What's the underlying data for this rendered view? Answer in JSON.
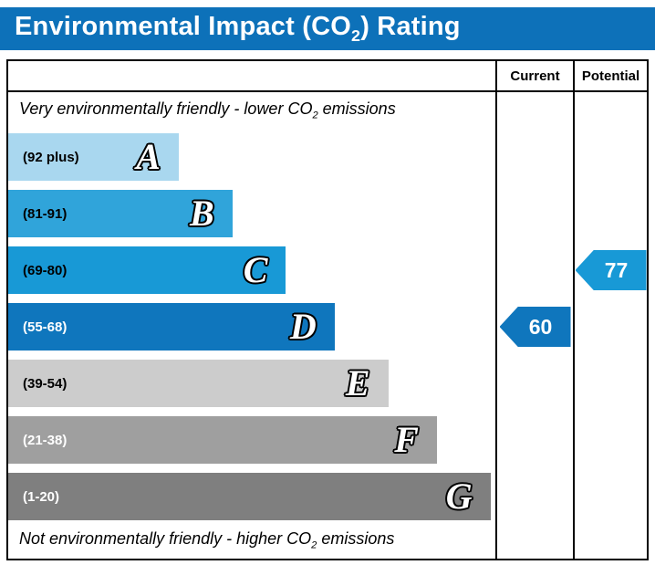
{
  "title": {
    "prefix": "Environmental Impact (CO",
    "sub": "2",
    "suffix": ") Rating"
  },
  "columns": {
    "current": "Current",
    "potential": "Potential"
  },
  "captions": {
    "top": {
      "prefix": "Very environmentally friendly - lower CO",
      "sub": "2",
      "suffix": " emissions"
    },
    "bottom": {
      "prefix": "Not environmentally friendly - higher CO",
      "sub": "2",
      "suffix": " emissions"
    }
  },
  "colors": {
    "header_bg": "#0d71b9",
    "border": "#000000"
  },
  "bands": [
    {
      "letter": "A",
      "range": "(92 plus)",
      "color": "#a9d7ef",
      "text_color": "#000000",
      "width_pct": 35
    },
    {
      "letter": "B",
      "range": "(81-91)",
      "color": "#30a4da",
      "text_color": "#000000",
      "width_pct": 46
    },
    {
      "letter": "C",
      "range": "(69-80)",
      "color": "#1899d6",
      "text_color": "#000000",
      "width_pct": 57
    },
    {
      "letter": "D",
      "range": "(55-68)",
      "color": "#0f76bd",
      "text_color": "#ffffff",
      "width_pct": 67
    },
    {
      "letter": "E",
      "range": "(39-54)",
      "color": "#cccccc",
      "text_color": "#000000",
      "width_pct": 78
    },
    {
      "letter": "F",
      "range": "(21-38)",
      "color": "#9f9f9f",
      "text_color": "#ffffff",
      "width_pct": 88
    },
    {
      "letter": "G",
      "range": "(1-20)",
      "color": "#7f7f7f",
      "text_color": "#ffffff",
      "width_pct": 99
    }
  ],
  "ratings": {
    "current": {
      "value": "60",
      "color": "#0f76bd",
      "row": 3
    },
    "potential": {
      "value": "77",
      "color": "#1899d6",
      "row": 2
    }
  },
  "chart_data": {
    "type": "bar",
    "title": "Environmental Impact (CO2) Rating",
    "categories": [
      "A",
      "B",
      "C",
      "D",
      "E",
      "F",
      "G"
    ],
    "band_ranges": [
      "(92 plus)",
      "(81-91)",
      "(69-80)",
      "(55-68)",
      "(39-54)",
      "(21-38)",
      "(1-20)"
    ],
    "bar_lengths_pct": [
      35,
      46,
      57,
      67,
      78,
      88,
      99
    ],
    "columns": [
      "Current",
      "Potential"
    ],
    "current": {
      "value": 60,
      "band": "D"
    },
    "potential": {
      "value": 77,
      "band": "C"
    },
    "top_caption": "Very environmentally friendly - lower CO2 emissions",
    "bottom_caption": "Not environmentally friendly - higher CO2 emissions",
    "legend_position": "none",
    "grid": false
  }
}
